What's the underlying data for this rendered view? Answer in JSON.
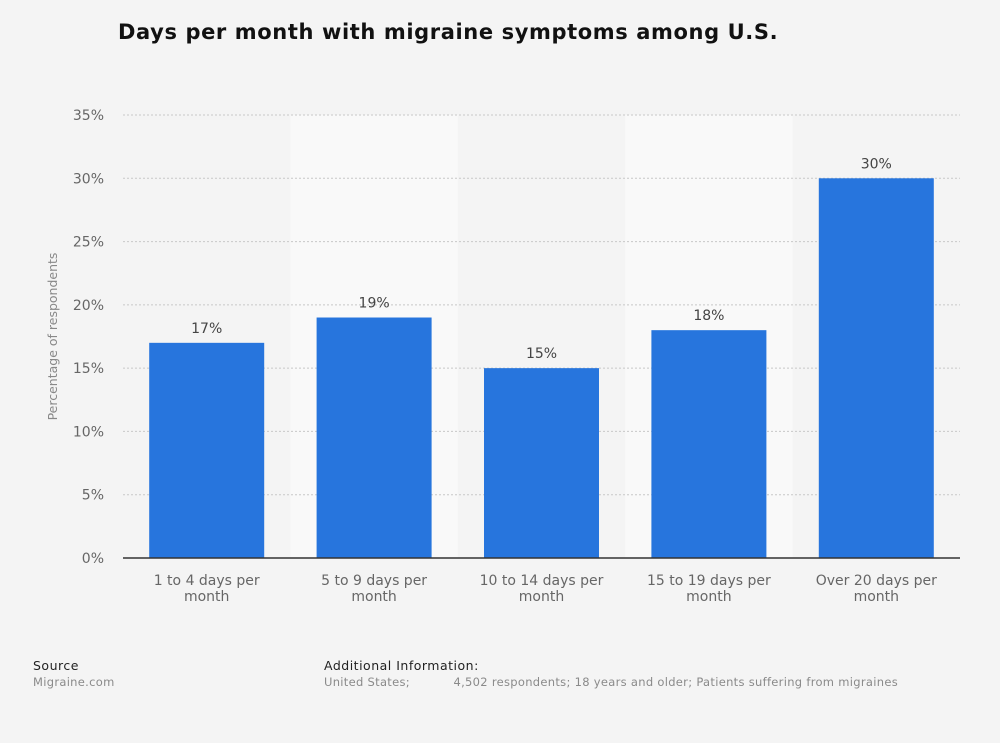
{
  "title": "Days per month with migraine symptoms among U.S.",
  "colors": {
    "bar": "#2775dd",
    "gridline": "#c8c8c8",
    "axis_text": "#666666",
    "band": "#f9f9f9"
  },
  "chart_data": {
    "type": "bar",
    "title": "Days per month with migraine symptoms among U.S.",
    "ylabel": "Percentage of respondents",
    "xlabel": "",
    "ylim": [
      0,
      35
    ],
    "y_ticks": [
      "0%",
      "5%",
      "10%",
      "15%",
      "20%",
      "25%",
      "30%",
      "35%"
    ],
    "grid": true,
    "categories": [
      [
        "1 to 4 days per",
        "month"
      ],
      [
        "5 to 9 days per",
        "month"
      ],
      [
        "10 to 14 days per",
        "month"
      ],
      [
        "15 to 19 days per",
        "month"
      ],
      [
        "Over 20 days per",
        "month"
      ]
    ],
    "values": [
      17,
      19,
      15,
      18,
      30
    ],
    "data_labels": [
      "17%",
      "19%",
      "15%",
      "18%",
      "30%"
    ]
  },
  "footer": {
    "source_label": "Source",
    "source_value": "Migraine.com",
    "info_label": "Additional Information:",
    "info_value": "United States;           4,502 respondents; 18 years and older; Patients suffering from migraines"
  }
}
